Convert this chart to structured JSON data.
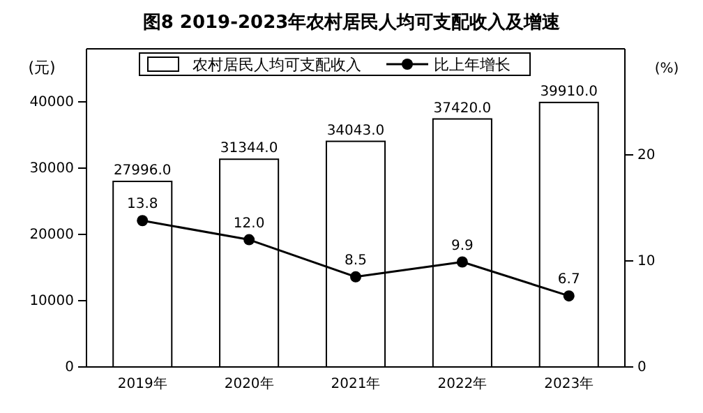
{
  "chart_data": {
    "type": "bar",
    "title": "图8 2019-2023年农村居民人均可支配收入及增速",
    "ylabel": "(元)",
    "y2label": "(%)",
    "categories": [
      "2019年",
      "2020年",
      "2021年",
      "2022年",
      "2023年"
    ],
    "series": [
      {
        "name": "农村居民人均可支配收入",
        "color": "#ffffff",
        "values": [
          27996.0,
          31344.0,
          34043.0,
          37420.0,
          39910.0
        ],
        "value_labels": [
          "27996.0",
          "31344.0",
          "34043.0",
          "37420.0",
          "39910.0"
        ]
      },
      {
        "name": "比上年增长",
        "type": "line",
        "axis": "y2",
        "color": "#000000",
        "marker": "circle",
        "values": [
          13.8,
          12.0,
          8.5,
          9.9,
          6.7
        ],
        "value_labels": [
          "13.8",
          "12.0",
          "8.5",
          "9.9",
          "6.7"
        ]
      }
    ],
    "ylim": [
      0,
      48000
    ],
    "yticks": [
      0,
      10000,
      20000,
      30000,
      40000
    ],
    "y2lim": [
      0,
      30
    ],
    "y2ticks": [
      0,
      10,
      20
    ],
    "legend": "top",
    "grid": false
  }
}
